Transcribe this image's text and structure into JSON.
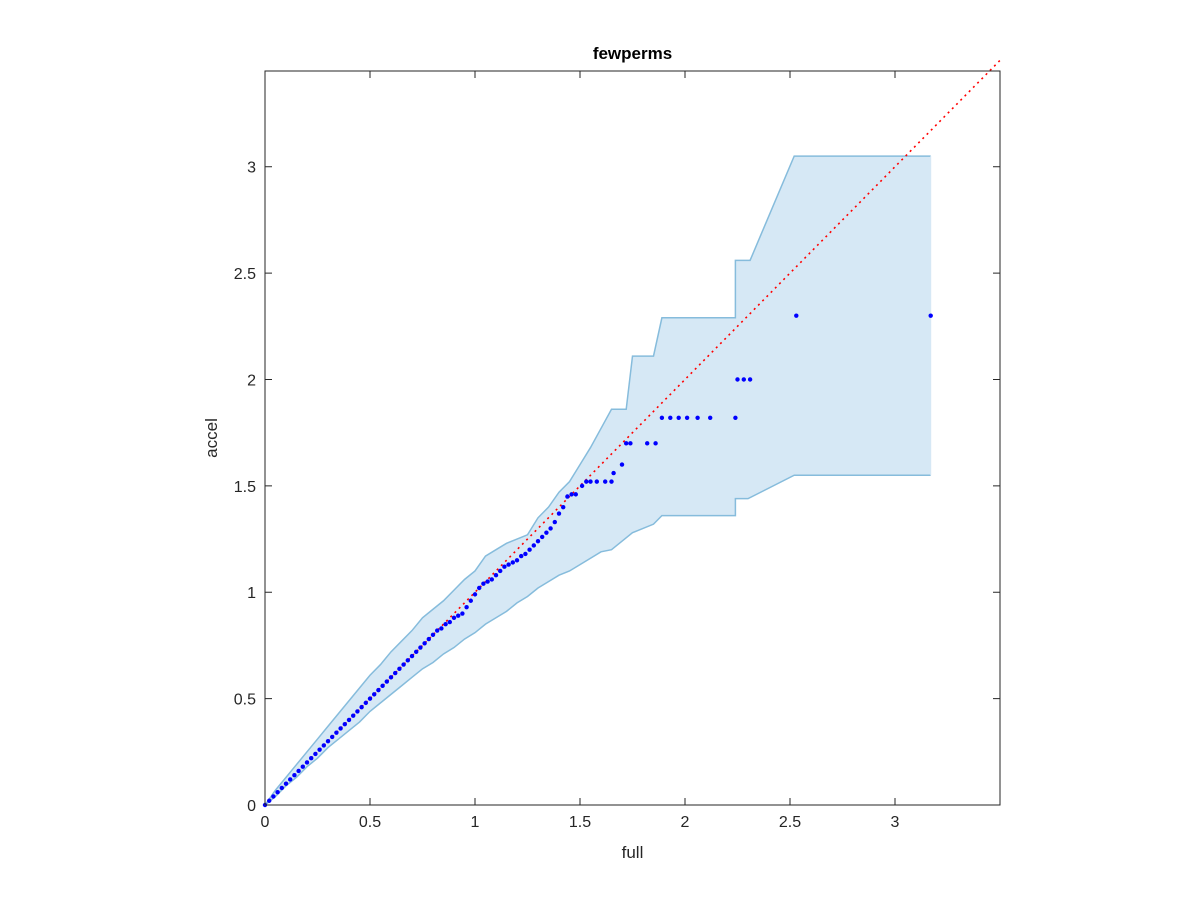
{
  "chart_data": {
    "type": "scatter",
    "title": "fewperms",
    "xlabel": "full",
    "ylabel": "accel",
    "xlim": [
      0,
      3.5
    ],
    "ylim": [
      0,
      3.45
    ],
    "xticks": [
      0,
      0.5,
      1,
      1.5,
      2,
      2.5,
      3
    ],
    "yticks": [
      0,
      0.5,
      1,
      1.5,
      2,
      2.5,
      3
    ],
    "xtick_labels": [
      "0",
      "0.5",
      "1",
      "1.5",
      "2",
      "2.5",
      "3"
    ],
    "ytick_labels": [
      "0",
      "0.5",
      "1",
      "1.5",
      "2",
      "2.5",
      "3"
    ],
    "grid": false,
    "reference_line": {
      "style": "dotted",
      "color": "#ff0000",
      "from": [
        0,
        0
      ],
      "to": [
        3.5,
        3.5
      ]
    },
    "band": {
      "fill": "#d6e8f5",
      "edge": "#86bcdc",
      "upper": [
        [
          0,
          0
        ],
        [
          0.05,
          0.07
        ],
        [
          0.1,
          0.13
        ],
        [
          0.15,
          0.19
        ],
        [
          0.2,
          0.25
        ],
        [
          0.25,
          0.31
        ],
        [
          0.3,
          0.37
        ],
        [
          0.35,
          0.43
        ],
        [
          0.4,
          0.49
        ],
        [
          0.45,
          0.55
        ],
        [
          0.5,
          0.61
        ],
        [
          0.55,
          0.66
        ],
        [
          0.6,
          0.72
        ],
        [
          0.65,
          0.77
        ],
        [
          0.7,
          0.82
        ],
        [
          0.75,
          0.88
        ],
        [
          0.8,
          0.92
        ],
        [
          0.85,
          0.96
        ],
        [
          0.9,
          1.01
        ],
        [
          0.95,
          1.06
        ],
        [
          1.0,
          1.1
        ],
        [
          1.05,
          1.17
        ],
        [
          1.1,
          1.2
        ],
        [
          1.15,
          1.23
        ],
        [
          1.2,
          1.25
        ],
        [
          1.25,
          1.27
        ],
        [
          1.3,
          1.35
        ],
        [
          1.35,
          1.4
        ],
        [
          1.4,
          1.47
        ],
        [
          1.45,
          1.52
        ],
        [
          1.5,
          1.6
        ],
        [
          1.55,
          1.68
        ],
        [
          1.6,
          1.77
        ],
        [
          1.65,
          1.86
        ],
        [
          1.72,
          1.86
        ],
        [
          1.75,
          2.11
        ],
        [
          1.85,
          2.11
        ],
        [
          1.89,
          2.29
        ],
        [
          2.24,
          2.29
        ],
        [
          2.24,
          2.56
        ],
        [
          2.31,
          2.56
        ],
        [
          2.52,
          3.05
        ],
        [
          3.17,
          3.05
        ]
      ],
      "lower": [
        [
          0,
          0
        ],
        [
          0.05,
          0.04
        ],
        [
          0.1,
          0.09
        ],
        [
          0.15,
          0.13
        ],
        [
          0.2,
          0.18
        ],
        [
          0.25,
          0.22
        ],
        [
          0.3,
          0.27
        ],
        [
          0.35,
          0.31
        ],
        [
          0.4,
          0.35
        ],
        [
          0.45,
          0.39
        ],
        [
          0.5,
          0.44
        ],
        [
          0.55,
          0.48
        ],
        [
          0.6,
          0.52
        ],
        [
          0.65,
          0.56
        ],
        [
          0.7,
          0.6
        ],
        [
          0.75,
          0.64
        ],
        [
          0.8,
          0.67
        ],
        [
          0.85,
          0.71
        ],
        [
          0.9,
          0.74
        ],
        [
          0.95,
          0.78
        ],
        [
          1.0,
          0.81
        ],
        [
          1.05,
          0.85
        ],
        [
          1.1,
          0.88
        ],
        [
          1.15,
          0.91
        ],
        [
          1.2,
          0.95
        ],
        [
          1.25,
          0.98
        ],
        [
          1.3,
          1.02
        ],
        [
          1.35,
          1.05
        ],
        [
          1.4,
          1.08
        ],
        [
          1.45,
          1.1
        ],
        [
          1.5,
          1.13
        ],
        [
          1.55,
          1.16
        ],
        [
          1.6,
          1.19
        ],
        [
          1.65,
          1.2
        ],
        [
          1.7,
          1.24
        ],
        [
          1.75,
          1.28
        ],
        [
          1.85,
          1.32
        ],
        [
          1.89,
          1.36
        ],
        [
          2.24,
          1.36
        ],
        [
          2.24,
          1.44
        ],
        [
          2.3,
          1.44
        ],
        [
          2.52,
          1.55
        ],
        [
          3.17,
          1.55
        ]
      ]
    },
    "series": [
      {
        "marker_color": "#0000ff",
        "points": [
          [
            0,
            0
          ],
          [
            0.02,
            0.02
          ],
          [
            0.04,
            0.04
          ],
          [
            0.06,
            0.06
          ],
          [
            0.08,
            0.08
          ],
          [
            0.1,
            0.1
          ],
          [
            0.12,
            0.12
          ],
          [
            0.14,
            0.14
          ],
          [
            0.16,
            0.16
          ],
          [
            0.18,
            0.18
          ],
          [
            0.2,
            0.2
          ],
          [
            0.22,
            0.22
          ],
          [
            0.24,
            0.24
          ],
          [
            0.26,
            0.26
          ],
          [
            0.28,
            0.28
          ],
          [
            0.3,
            0.3
          ],
          [
            0.32,
            0.32
          ],
          [
            0.34,
            0.34
          ],
          [
            0.36,
            0.36
          ],
          [
            0.38,
            0.38
          ],
          [
            0.4,
            0.4
          ],
          [
            0.42,
            0.42
          ],
          [
            0.44,
            0.44
          ],
          [
            0.46,
            0.46
          ],
          [
            0.48,
            0.48
          ],
          [
            0.5,
            0.5
          ],
          [
            0.52,
            0.52
          ],
          [
            0.54,
            0.54
          ],
          [
            0.56,
            0.56
          ],
          [
            0.58,
            0.58
          ],
          [
            0.6,
            0.6
          ],
          [
            0.62,
            0.62
          ],
          [
            0.64,
            0.64
          ],
          [
            0.66,
            0.66
          ],
          [
            0.68,
            0.68
          ],
          [
            0.7,
            0.7
          ],
          [
            0.72,
            0.72
          ],
          [
            0.74,
            0.74
          ],
          [
            0.76,
            0.76
          ],
          [
            0.78,
            0.78
          ],
          [
            0.8,
            0.8
          ],
          [
            0.82,
            0.82
          ],
          [
            0.84,
            0.83
          ],
          [
            0.86,
            0.85
          ],
          [
            0.88,
            0.86
          ],
          [
            0.9,
            0.88
          ],
          [
            0.92,
            0.89
          ],
          [
            0.94,
            0.9
          ],
          [
            0.96,
            0.93
          ],
          [
            0.98,
            0.96
          ],
          [
            1.0,
            0.99
          ],
          [
            1.02,
            1.02
          ],
          [
            1.04,
            1.04
          ],
          [
            1.06,
            1.05
          ],
          [
            1.08,
            1.06
          ],
          [
            1.1,
            1.08
          ],
          [
            1.12,
            1.1
          ],
          [
            1.14,
            1.12
          ],
          [
            1.16,
            1.13
          ],
          [
            1.18,
            1.14
          ],
          [
            1.2,
            1.15
          ],
          [
            1.22,
            1.17
          ],
          [
            1.24,
            1.18
          ],
          [
            1.26,
            1.2
          ],
          [
            1.28,
            1.22
          ],
          [
            1.3,
            1.24
          ],
          [
            1.32,
            1.26
          ],
          [
            1.34,
            1.28
          ],
          [
            1.36,
            1.3
          ],
          [
            1.38,
            1.33
          ],
          [
            1.4,
            1.37
          ],
          [
            1.42,
            1.4
          ],
          [
            1.44,
            1.45
          ],
          [
            1.46,
            1.46
          ],
          [
            1.48,
            1.46
          ],
          [
            1.51,
            1.5
          ],
          [
            1.53,
            1.52
          ],
          [
            1.55,
            1.52
          ],
          [
            1.58,
            1.52
          ],
          [
            1.62,
            1.52
          ],
          [
            1.65,
            1.52
          ],
          [
            1.66,
            1.56
          ],
          [
            1.7,
            1.6
          ],
          [
            1.72,
            1.7
          ],
          [
            1.74,
            1.7
          ],
          [
            1.82,
            1.7
          ],
          [
            1.86,
            1.7
          ],
          [
            1.89,
            1.82
          ],
          [
            1.93,
            1.82
          ],
          [
            1.97,
            1.82
          ],
          [
            2.01,
            1.82
          ],
          [
            2.06,
            1.82
          ],
          [
            2.12,
            1.82
          ],
          [
            2.24,
            1.82
          ],
          [
            2.25,
            2.0
          ],
          [
            2.28,
            2.0
          ],
          [
            2.31,
            2.0
          ],
          [
            2.53,
            2.3
          ],
          [
            3.17,
            2.3
          ]
        ]
      }
    ]
  }
}
